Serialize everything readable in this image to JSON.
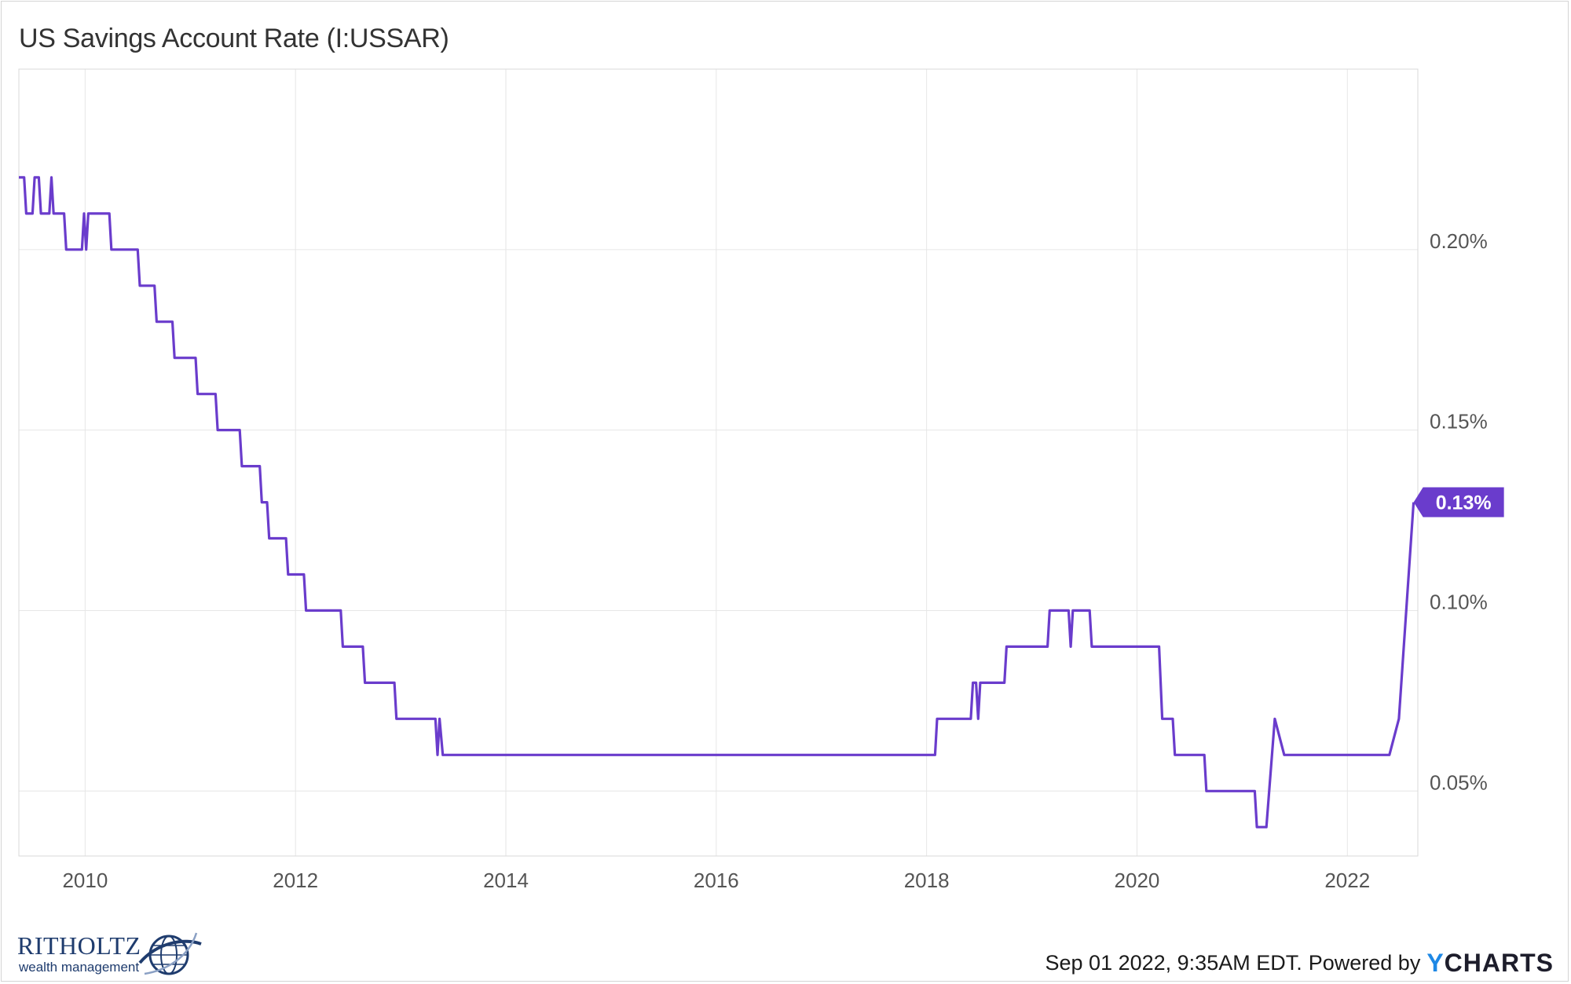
{
  "header": {
    "title": "US Savings Account Rate (I:USSAR)"
  },
  "footer": {
    "timestamp": "Sep 01 2022, 9:35AM EDT.",
    "powered_by": "Powered by",
    "logo_y": "Y",
    "logo_rest": "CHARTS"
  },
  "brand": {
    "name": "RITHOLTZ",
    "sub": "wealth management"
  },
  "colors": {
    "line": "#6a3ccc",
    "label_bg": "#6a3ccc",
    "grid": "#e6e6e6"
  },
  "chart_data": {
    "type": "line",
    "title": "US Savings Account Rate (I:USSAR)",
    "y_axis_position": "right",
    "xlim": [
      2009.37,
      2022.67
    ],
    "ylim": [
      0.032,
      0.25
    ],
    "x_ticks": [
      2010,
      2012,
      2014,
      2016,
      2018,
      2020,
      2022
    ],
    "x_tick_labels": [
      "2010",
      "2012",
      "2014",
      "2016",
      "2018",
      "2020",
      "2022"
    ],
    "y_ticks": [
      0.05,
      0.1,
      0.15,
      0.2
    ],
    "y_tick_labels": [
      "0.05%",
      "0.10%",
      "0.15%",
      "0.20%"
    ],
    "grid": true,
    "last_value_label": "0.13%",
    "series": [
      {
        "points": [
          [
            2009.37,
            0.22
          ],
          [
            2009.42,
            0.22
          ],
          [
            2009.44,
            0.21
          ],
          [
            2009.5,
            0.21
          ],
          [
            2009.52,
            0.22
          ],
          [
            2009.56,
            0.22
          ],
          [
            2009.58,
            0.21
          ],
          [
            2009.66,
            0.21
          ],
          [
            2009.68,
            0.22
          ],
          [
            2009.7,
            0.21
          ],
          [
            2009.8,
            0.21
          ],
          [
            2009.82,
            0.2
          ],
          [
            2009.97,
            0.2
          ],
          [
            2009.99,
            0.21
          ],
          [
            2010.01,
            0.2
          ],
          [
            2010.03,
            0.21
          ],
          [
            2010.23,
            0.21
          ],
          [
            2010.25,
            0.2
          ],
          [
            2010.5,
            0.2
          ],
          [
            2010.52,
            0.19
          ],
          [
            2010.66,
            0.19
          ],
          [
            2010.68,
            0.18
          ],
          [
            2010.83,
            0.18
          ],
          [
            2010.85,
            0.17
          ],
          [
            2011.05,
            0.17
          ],
          [
            2011.07,
            0.16
          ],
          [
            2011.24,
            0.16
          ],
          [
            2011.26,
            0.15
          ],
          [
            2011.47,
            0.15
          ],
          [
            2011.49,
            0.14
          ],
          [
            2011.66,
            0.14
          ],
          [
            2011.68,
            0.13
          ],
          [
            2011.73,
            0.13
          ],
          [
            2011.75,
            0.12
          ],
          [
            2011.91,
            0.12
          ],
          [
            2011.93,
            0.11
          ],
          [
            2012.08,
            0.11
          ],
          [
            2012.1,
            0.1
          ],
          [
            2012.43,
            0.1
          ],
          [
            2012.45,
            0.09
          ],
          [
            2012.64,
            0.09
          ],
          [
            2012.66,
            0.08
          ],
          [
            2012.94,
            0.08
          ],
          [
            2012.96,
            0.07
          ],
          [
            2013.33,
            0.07
          ],
          [
            2013.35,
            0.06
          ],
          [
            2013.37,
            0.07
          ],
          [
            2013.4,
            0.06
          ],
          [
            2018.08,
            0.06
          ],
          [
            2018.1,
            0.07
          ],
          [
            2018.42,
            0.07
          ],
          [
            2018.44,
            0.08
          ],
          [
            2018.47,
            0.08
          ],
          [
            2018.49,
            0.07
          ],
          [
            2018.51,
            0.08
          ],
          [
            2018.74,
            0.08
          ],
          [
            2018.76,
            0.09
          ],
          [
            2019.15,
            0.09
          ],
          [
            2019.17,
            0.1
          ],
          [
            2019.35,
            0.1
          ],
          [
            2019.37,
            0.09
          ],
          [
            2019.39,
            0.1
          ],
          [
            2019.55,
            0.1
          ],
          [
            2019.57,
            0.09
          ],
          [
            2020.21,
            0.09
          ],
          [
            2020.24,
            0.07
          ],
          [
            2020.34,
            0.07
          ],
          [
            2020.36,
            0.06
          ],
          [
            2020.64,
            0.06
          ],
          [
            2020.66,
            0.05
          ],
          [
            2021.12,
            0.05
          ],
          [
            2021.14,
            0.04
          ],
          [
            2021.23,
            0.04
          ],
          [
            2021.31,
            0.07
          ],
          [
            2021.4,
            0.06
          ],
          [
            2022.4,
            0.06
          ],
          [
            2022.49,
            0.07
          ],
          [
            2022.63,
            0.13
          ]
        ]
      }
    ]
  }
}
